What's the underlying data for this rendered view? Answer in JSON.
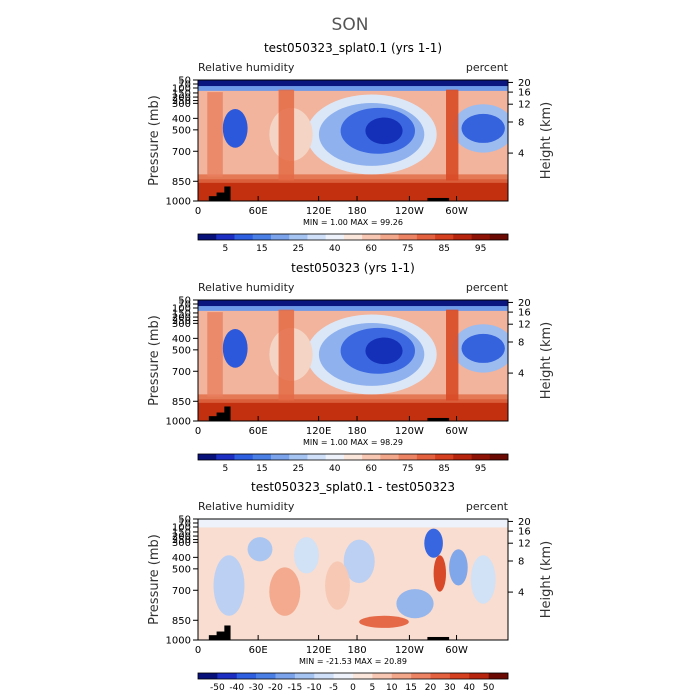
{
  "page_title": "SON",
  "chart_data": [
    {
      "type": "heatmap",
      "title": "test050323_splat0.1 (yrs 1-1)",
      "left_label": "Relative humidity",
      "right_label": "percent",
      "ylabel": "Pressure (mb)",
      "y2label": "Height (km)",
      "xticks": [
        "0",
        "60E",
        "120E",
        "180",
        "120W",
        "60W"
      ],
      "yticks": [
        "1000",
        "850",
        "700",
        "500",
        "400",
        "300",
        "250",
        "200",
        "150",
        "100",
        "70",
        "50"
      ],
      "y2ticks": [
        "4",
        "8",
        "12",
        "16",
        "20"
      ],
      "stats": "MIN =    1.00   MAX =   99.26",
      "colorbar": {
        "labels": [
          "5",
          "15",
          "25",
          "40",
          "60",
          "75",
          "85",
          "95"
        ],
        "colors": [
          "#08107a",
          "#1c2fc2",
          "#2d5fe0",
          "#4a7fe6",
          "#7aa3ec",
          "#a6c4f2",
          "#cfe0f8",
          "#eef3fb",
          "#fbe6dc",
          "#f7c7b3",
          "#f2a78b",
          "#ec8463",
          "#e4613f",
          "#d54020",
          "#b8250e",
          "#8f1206",
          "#6b0a02"
        ]
      }
    },
    {
      "type": "heatmap",
      "title": "test050323 (yrs 1-1)",
      "left_label": "Relative humidity",
      "right_label": "percent",
      "ylabel": "Pressure (mb)",
      "y2label": "Height (km)",
      "xticks": [
        "0",
        "60E",
        "120E",
        "180",
        "120W",
        "60W"
      ],
      "yticks": [
        "1000",
        "850",
        "700",
        "500",
        "400",
        "300",
        "250",
        "200",
        "150",
        "100",
        "70",
        "50"
      ],
      "y2ticks": [
        "4",
        "8",
        "12",
        "16",
        "20"
      ],
      "stats": "MIN =    1.00   MAX =   98.29",
      "colorbar": {
        "labels": [
          "5",
          "15",
          "25",
          "40",
          "60",
          "75",
          "85",
          "95"
        ],
        "colors": [
          "#08107a",
          "#1c2fc2",
          "#2d5fe0",
          "#4a7fe6",
          "#7aa3ec",
          "#a6c4f2",
          "#cfe0f8",
          "#eef3fb",
          "#fbe6dc",
          "#f7c7b3",
          "#f2a78b",
          "#ec8463",
          "#e4613f",
          "#d54020",
          "#b8250e",
          "#8f1206",
          "#6b0a02"
        ]
      }
    },
    {
      "type": "heatmap",
      "title": "test050323_splat0.1 - test050323",
      "left_label": "Relative humidity",
      "right_label": "percent",
      "ylabel": "Pressure (mb)",
      "y2label": "Height (km)",
      "xticks": [
        "0",
        "60E",
        "120E",
        "180",
        "120W",
        "60W"
      ],
      "yticks": [
        "1000",
        "850",
        "700",
        "500",
        "400",
        "300",
        "250",
        "200",
        "150",
        "100",
        "70",
        "50"
      ],
      "y2ticks": [
        "4",
        "8",
        "12",
        "16",
        "20"
      ],
      "stats": "MIN =  -21.53   MAX =   20.89",
      "colorbar": {
        "labels": [
          "-50",
          "-40",
          "-30",
          "-20",
          "-15",
          "-10",
          "-5",
          "0",
          "5",
          "10",
          "15",
          "20",
          "30",
          "40",
          "50"
        ],
        "colors": [
          "#08107a",
          "#1c2fc2",
          "#2d5fe0",
          "#4a7fe6",
          "#7aa3ec",
          "#a6c4f2",
          "#cfe0f8",
          "#eef3fb",
          "#fbe6dc",
          "#f7c7b3",
          "#f2a78b",
          "#ec8463",
          "#e4613f",
          "#d54020",
          "#b8250e",
          "#6b0a02"
        ]
      }
    }
  ]
}
